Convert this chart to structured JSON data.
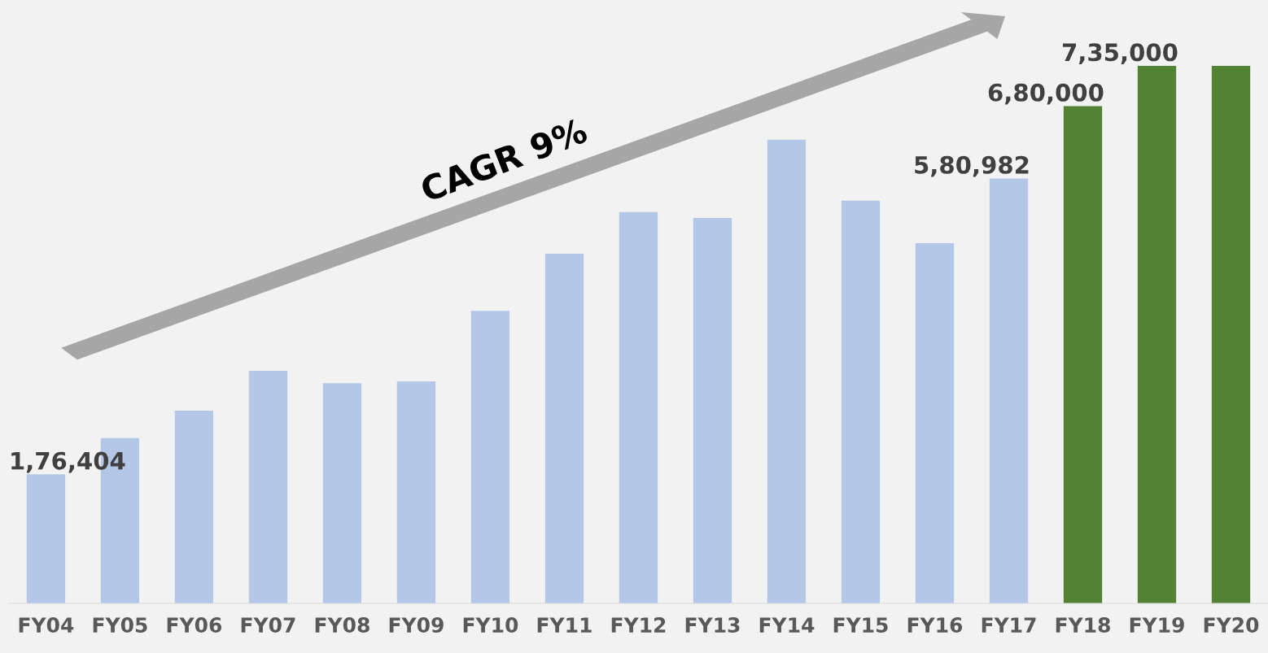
{
  "chart_data": {
    "type": "bar",
    "categories": [
      "FY04",
      "FY05",
      "FY06",
      "FY07",
      "FY08",
      "FY09",
      "FY10",
      "FY11",
      "FY12",
      "FY13",
      "FY14",
      "FY15",
      "FY16",
      "FY17",
      "FY18",
      "FY19",
      "FY20"
    ],
    "values": [
      176404,
      226000,
      263500,
      318000,
      301000,
      303500,
      400000,
      478000,
      535000,
      527000,
      634000,
      550500,
      492500,
      580982,
      680000,
      735000,
      735000
    ],
    "colors": [
      "#b4c7e7",
      "#b4c7e7",
      "#b4c7e7",
      "#b4c7e7",
      "#b4c7e7",
      "#b4c7e7",
      "#b4c7e7",
      "#b4c7e7",
      "#b4c7e7",
      "#b4c7e7",
      "#b4c7e7",
      "#b4c7e7",
      "#b4c7e7",
      "#b4c7e7",
      "#548235",
      "#548235",
      "#548235"
    ],
    "value_labels": [
      "1,76,404",
      null,
      null,
      null,
      null,
      null,
      null,
      null,
      null,
      null,
      null,
      null,
      null,
      "5,80,982",
      "6,80,000",
      "7,35,000",
      null
    ],
    "ylim": [
      0,
      825000
    ],
    "tick_labels": "x",
    "grid": false,
    "annotations": [
      "CAGR 9%"
    ]
  }
}
